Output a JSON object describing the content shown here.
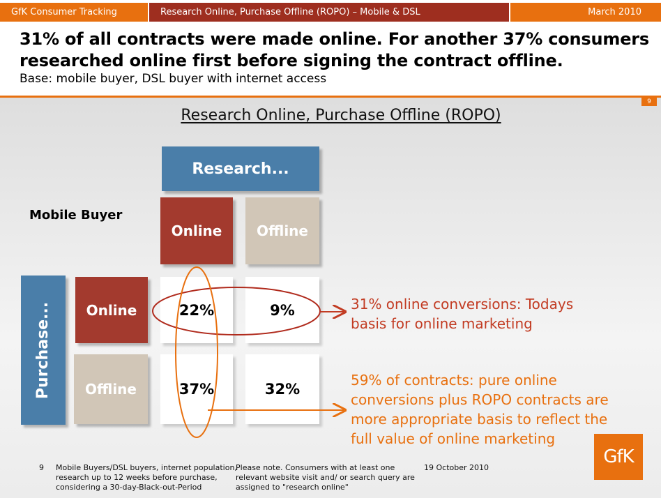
{
  "topbar": {
    "left": "GfK Consumer Tracking",
    "middle": "Research Online, Purchase Offline (ROPO) – Mobile & DSL",
    "right": "March 2010"
  },
  "headline": {
    "title": "31% of all contracts were made online. For another 37% consumers researched online first before signing the contract offline.",
    "base": "Base: mobile buyer, DSL buyer with internet access"
  },
  "page_number": "9",
  "chart_title": "Research Online, Purchase Offline (ROPO)",
  "matrix": {
    "segment": "Mobile Buyer",
    "research_header": "Research...",
    "purchase_header": "Purchase...",
    "col_online": "Online",
    "col_offline": "Offline",
    "row_online": "Online",
    "row_offline": "Offline",
    "cells": {
      "online_online": "22%",
      "online_offline": "9%",
      "offline_online": "37%",
      "offline_offline": "32%"
    }
  },
  "annotations": {
    "first": [
      "31% online conversions: Todays",
      "basis for online marketing"
    ],
    "second": [
      "59% of contracts: pure online",
      "conversions plus ROPO contracts are",
      "more appropriate basis to reflect the",
      "full value of online marketing"
    ]
  },
  "footer": {
    "num": "9",
    "note1": [
      "Mobile Buyers/DSL buyers, internet population,",
      "research up to 12 weeks before purchase,",
      "considering a 30-day-Black-out-Period"
    ],
    "note2": [
      "Please note. Consumers with at least one",
      "relevant website visit and/ or search query are",
      "assigned to \"research online\""
    ],
    "date": "19 October 2010"
  },
  "logo_text": "GfK",
  "colors": {
    "orange": "#e8700f",
    "dark_red": "#9e2e1f",
    "box_red": "#a33a2e",
    "box_blue": "#4a7ea9",
    "box_beige": "#d1c6b7",
    "annotation_red": "#c23b22"
  }
}
